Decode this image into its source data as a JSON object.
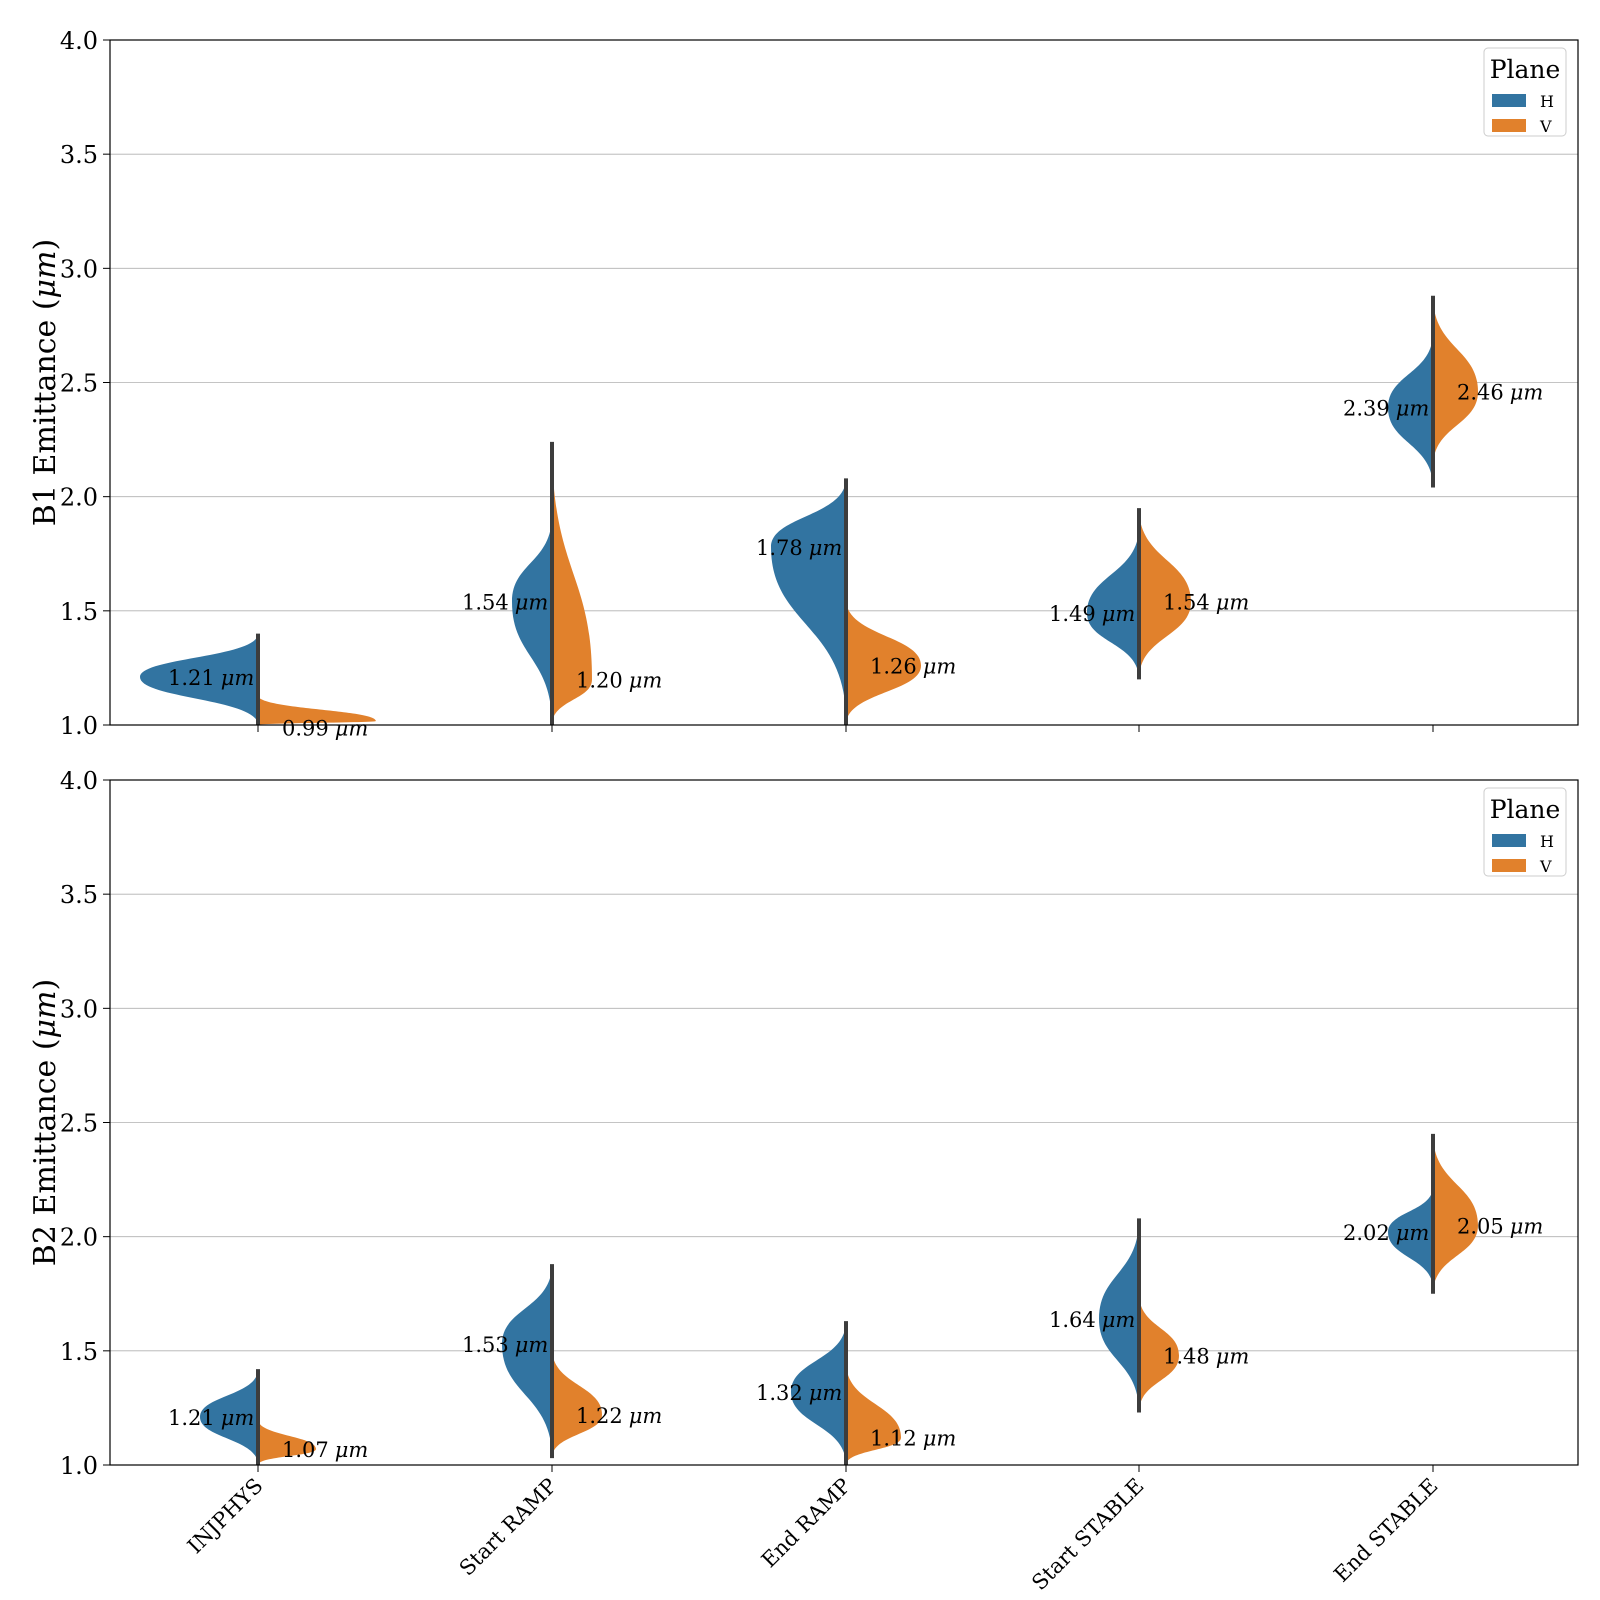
{
  "legend_title": "Plane",
  "legend_items": [
    {
      "label": "H",
      "color": "#3274a1"
    },
    {
      "label": "V",
      "color": "#e1812c"
    }
  ],
  "unit_label": "μm",
  "chart_data": [
    {
      "type": "violin",
      "ylabel_prefix": "B1 Emittance (",
      "ylabel_unit": "μm",
      "ylabel_suffix": ")",
      "ylim": [
        1.0,
        4.0
      ],
      "yticks": [
        "1.0",
        "1.5",
        "2.0",
        "2.5",
        "3.0",
        "3.5",
        "4.0"
      ],
      "grid": true,
      "legend": "top-right",
      "categories": [
        "INJPHYS",
        "Start RAMP",
        "End RAMP",
        "Start STABLE",
        "End STABLE"
      ],
      "series": [
        {
          "name": "H",
          "medians": [
            1.21,
            1.54,
            1.78,
            1.49,
            2.39
          ],
          "median_labels": [
            "1.21",
            "1.54",
            "1.78",
            "1.49",
            "2.39"
          ],
          "min": [
            1.0,
            1.0,
            1.02,
            1.2,
            2.04
          ],
          "max": [
            1.4,
            1.92,
            2.08,
            1.87,
            2.72
          ]
        },
        {
          "name": "V",
          "medians": [
            0.99,
            1.2,
            1.26,
            1.54,
            2.46
          ],
          "median_labels": [
            "0.99",
            "1.20",
            "1.26",
            "1.54",
            "2.46"
          ],
          "min": [
            1.0,
            1.0,
            1.0,
            1.2,
            2.13
          ],
          "max": [
            1.13,
            2.24,
            1.55,
            1.95,
            2.88
          ]
        }
      ]
    },
    {
      "type": "violin",
      "ylabel_prefix": "B2 Emittance (",
      "ylabel_unit": "μm",
      "ylabel_suffix": ")",
      "ylim": [
        1.0,
        4.0
      ],
      "yticks": [
        "1.0",
        "1.5",
        "2.0",
        "2.5",
        "3.0",
        "3.5",
        "4.0"
      ],
      "grid": true,
      "legend": "top-right",
      "categories": [
        "INJPHYS",
        "Start RAMP",
        "End RAMP",
        "Start STABLE",
        "End STABLE"
      ],
      "series": [
        {
          "name": "H",
          "medians": [
            1.21,
            1.53,
            1.32,
            1.64,
            2.02
          ],
          "median_labels": [
            "1.21",
            "1.53",
            "1.32",
            "1.64",
            "2.02"
          ],
          "min": [
            1.0,
            1.03,
            1.0,
            1.23,
            1.77
          ],
          "max": [
            1.42,
            1.88,
            1.63,
            2.08,
            2.22
          ]
        },
        {
          "name": "V",
          "medians": [
            1.07,
            1.22,
            1.12,
            1.48,
            2.05
          ],
          "median_labels": [
            "1.07",
            "1.22",
            "1.12",
            "1.48",
            "2.05"
          ],
          "min": [
            1.0,
            1.03,
            1.0,
            1.23,
            1.75
          ],
          "max": [
            1.2,
            1.51,
            1.45,
            1.75,
            2.45
          ]
        }
      ]
    }
  ]
}
